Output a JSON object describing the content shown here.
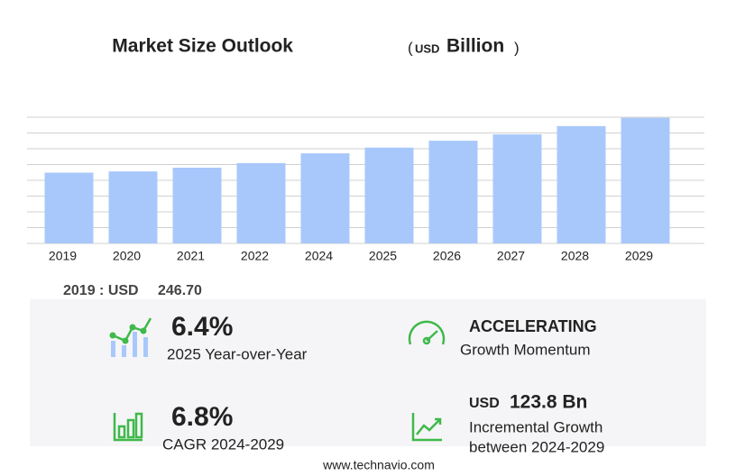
{
  "chart_data": {
    "type": "bar",
    "title": "Market Size Outlook",
    "title_unit": [
      "(",
      "USD",
      "Billion",
      ")"
    ],
    "categories": [
      "2019",
      "2020",
      "2021",
      "2022",
      "2024",
      "2025",
      "2026",
      "2027",
      "2028",
      "2029"
    ],
    "values": [
      246.7,
      251,
      264,
      280,
      314,
      334,
      358,
      380,
      409,
      438
    ],
    "color": "#a8c8fb",
    "ylim": [
      0,
      440
    ],
    "yticks": [
      0,
      55,
      110,
      165,
      220,
      275,
      330,
      385,
      440
    ],
    "grid": true
  },
  "summary": {
    "base_label": "2019 : USD",
    "base_value": "246.70"
  },
  "stats": [
    {
      "value": "6.4%",
      "label": "2025 Year-over-Year"
    },
    {
      "value": "ACCELERATING",
      "label": "Growth Momentum"
    },
    {
      "value": "6.8%",
      "label": "CAGR 2024-2029"
    },
    {
      "value_unit": "USD",
      "value": "123.8 Bn",
      "label": "Incremental Growth",
      "label2": "between 2024-2029"
    }
  ],
  "footer": "www.technavio.com"
}
